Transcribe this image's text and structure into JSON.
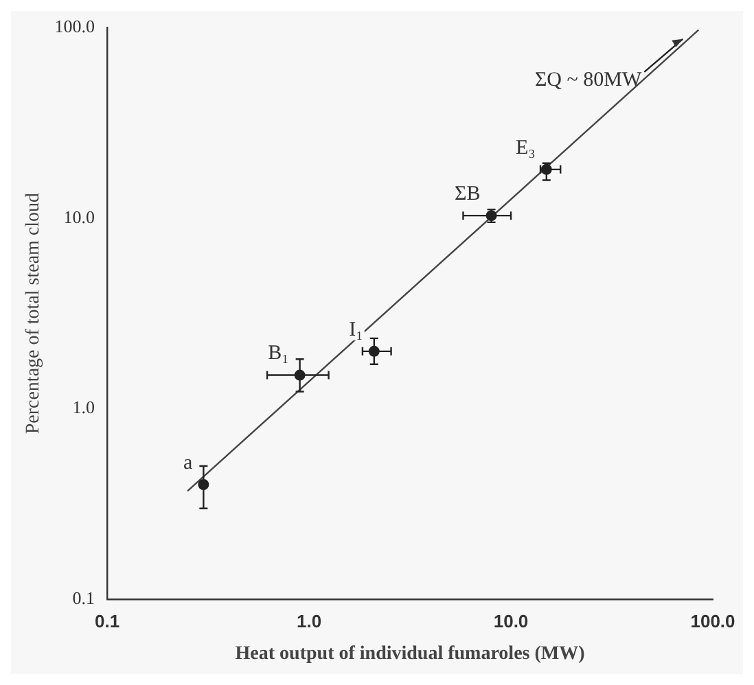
{
  "chart_data": {
    "type": "scatter",
    "log": "xy",
    "xlabel": "Heat output of individual fumaroles (MW)",
    "ylabel": "Percentage of total steam cloud",
    "xlim": [
      0.1,
      100
    ],
    "ylim": [
      0.1,
      100
    ],
    "xticks": [
      0.1,
      {
        "value": 1,
        "label": "1.0"
      },
      {
        "value": 10,
        "label": "10.0"
      },
      {
        "value": 100,
        "label": "100.0"
      }
    ],
    "yticks": [
      0.1,
      {
        "value": 1,
        "label": "1.0"
      },
      {
        "value": 10,
        "label": "10.0"
      },
      {
        "value": 100,
        "label": "100.0"
      }
    ],
    "series": [
      {
        "color": "#222222",
        "marker": "circle",
        "x": [
          0.3,
          0.9,
          2.1,
          8,
          15
        ],
        "values": [
          0.4,
          1.5,
          2.0,
          10.3,
          18
        ],
        "errors": [
          [
            0.3,
            0.5
          ],
          [
            1.23,
            1.82
          ],
          [
            1.71,
            2.34
          ],
          [
            9.5,
            11.1
          ],
          [
            15.8,
            19.4
          ]
        ],
        "xerrors": [
          null,
          [
            0.62,
            1.25
          ],
          [
            1.84,
            2.55
          ],
          [
            5.8,
            10.0
          ],
          [
            14.0,
            17.6
          ]
        ]
      },
      {
        "type": "line",
        "color": "#444444",
        "marker": "none",
        "x": [
          0.25,
          85
        ],
        "values": [
          0.37,
          97
        ]
      }
    ],
    "annotations": [
      {
        "text": "a",
        "x": 0.3,
        "y": 0.4
      },
      {
        "text": "B₁",
        "x": 0.9,
        "y": 1.5
      },
      {
        "text": "I₁",
        "x": 2.1,
        "y": 2.0
      },
      {
        "text": "ΣB",
        "x": 8,
        "y": 10.3
      },
      {
        "text": "E₃",
        "x": 15,
        "y": 18
      },
      {
        "text": "ΣQ ~ 80MW",
        "x": 71,
        "y": 87
      }
    ]
  }
}
